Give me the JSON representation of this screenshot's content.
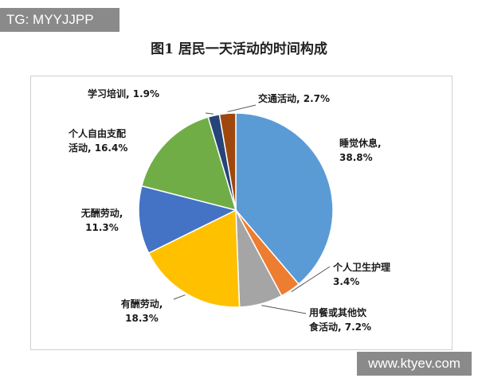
{
  "watermark_top": "TG: MYYJJPP",
  "watermark_bottom": "www.ktyev.com",
  "chart_data": {
    "type": "pie",
    "title": "图1 居民一天活动的时间构成",
    "slices": [
      {
        "label": "睡觉休息,",
        "value": 38.8,
        "value_label": "38.8%",
        "color": "#5b9bd5"
      },
      {
        "label": "个人卫生护理",
        "value": 3.4,
        "value_label": "3.4%",
        "color": "#ed7d31"
      },
      {
        "label": "用餐或其他饮",
        "label2": "食活动,",
        "value": 7.2,
        "value_label": "7.2%",
        "color": "#a5a5a5"
      },
      {
        "label": "有酬劳动,",
        "value": 18.3,
        "value_label": "18.3%",
        "color": "#ffc000"
      },
      {
        "label": "无酬劳动,",
        "value": 11.3,
        "value_label": "11.3%",
        "color": "#4472c4"
      },
      {
        "label": "个人自由支配",
        "label2": "活动,",
        "value": 16.4,
        "value_label": "16.4%",
        "color": "#70ad47"
      },
      {
        "label": "学习培训,",
        "value": 1.9,
        "value_label": "1.9%",
        "color": "#264478"
      },
      {
        "label": "交通活动,",
        "value": 2.7,
        "value_label": "2.7%",
        "color": "#9e480e"
      }
    ]
  }
}
